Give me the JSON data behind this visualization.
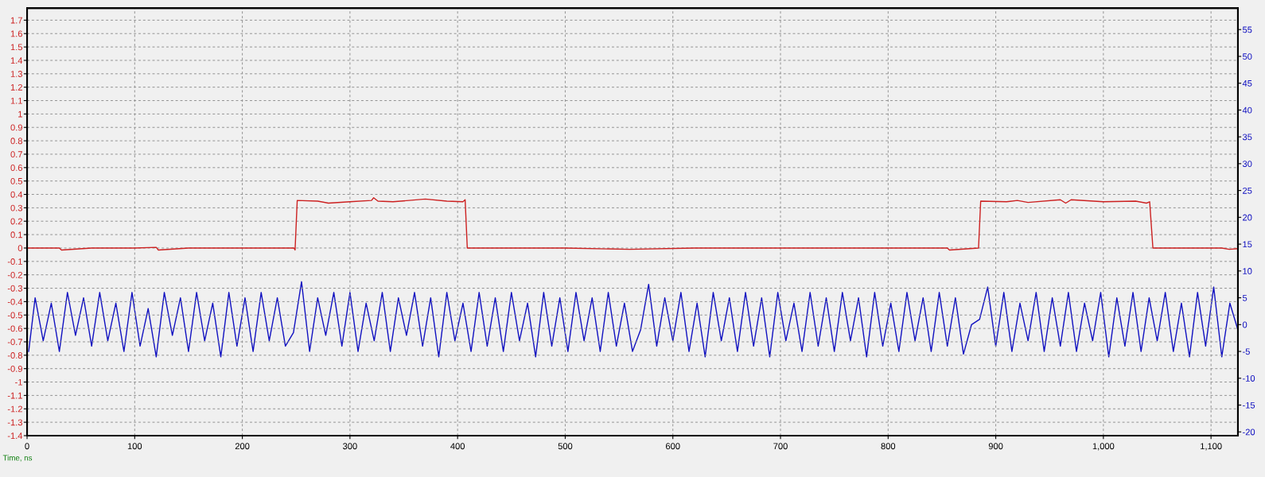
{
  "chart_data": {
    "type": "line",
    "xlabel": "Time, ns",
    "xlim": [
      0,
      1125
    ],
    "xticks": [
      0,
      100,
      200,
      300,
      400,
      500,
      600,
      700,
      800,
      900,
      {
        "value": 1000,
        "label": "1,000"
      },
      {
        "value": 1100,
        "label": "1,100"
      }
    ],
    "ylim": [
      -1.4,
      1.79
    ],
    "yticks": [
      -1.4,
      -1.3,
      -1.2,
      -1.1,
      -1,
      -0.9,
      -0.8,
      -0.7,
      -0.6,
      -0.5,
      -0.4,
      -0.3,
      -0.2,
      -0.1,
      0,
      0.1,
      0.2,
      0.3,
      0.4,
      0.5,
      0.6,
      0.7,
      0.8,
      0.9,
      1,
      1.1,
      1.2,
      1.3,
      1.4,
      1.5,
      1.6,
      1.7
    ],
    "y2lim": [
      -20.7,
      59
    ],
    "y2ticks": [
      -20,
      -15,
      -10,
      -5,
      0,
      5,
      10,
      15,
      20,
      25,
      30,
      35,
      40,
      45,
      50,
      55
    ],
    "grid": true,
    "line_style": "solid",
    "marker": "none",
    "series": [
      {
        "color": "#cc2020",
        "x": [
          0,
          30,
          32,
          60,
          100,
          120,
          122,
          150,
          200,
          230,
          248,
          249,
          251,
          270,
          280,
          300,
          320,
          322,
          326,
          340,
          370,
          390,
          405,
          407,
          409,
          450,
          500,
          560,
          620,
          700,
          750,
          800,
          855,
          857,
          884,
          886,
          910,
          920,
          930,
          960,
          965,
          970,
          1000,
          1030,
          1040,
          1043,
          1046,
          1080,
          1110,
          1117,
          1125
        ],
        "values": [
          0,
          0,
          -0.015,
          0,
          0,
          0.005,
          -0.015,
          0,
          0,
          0,
          0,
          -0.015,
          0.355,
          0.35,
          0.335,
          0.345,
          0.355,
          0.375,
          0.35,
          0.345,
          0.365,
          0.35,
          0.345,
          0.36,
          0,
          0,
          0,
          -0.01,
          0,
          0,
          0,
          0,
          0,
          -0.015,
          0,
          0.35,
          0.345,
          0.355,
          0.34,
          0.36,
          0.335,
          0.36,
          0.345,
          0.35,
          0.335,
          0.345,
          0,
          0,
          0,
          -0.01,
          -0.005
        ]
      },
      {
        "color": "#1010c0",
        "axis": "y2",
        "x": [
          1.5,
          7.5,
          15,
          22.5,
          30,
          37.5,
          45,
          52.5,
          60,
          67.5,
          75,
          82.5,
          90,
          97.5,
          105,
          112.5,
          120,
          127.5,
          135,
          142.5,
          150,
          157.5,
          165,
          172.5,
          180,
          187.5,
          195,
          202.5,
          210,
          217.5,
          225,
          232.5,
          240,
          247.5,
          255,
          262.5,
          270,
          277.5,
          285,
          292.5,
          300,
          307.5,
          315,
          322.5,
          330,
          337.5,
          345,
          352.5,
          360,
          367.5,
          375,
          382.5,
          390,
          397.5,
          405,
          412.5,
          420,
          427.5,
          435,
          442.5,
          450,
          457.5,
          465,
          472.5,
          480,
          487.5,
          495,
          502.5,
          510,
          517.5,
          525,
          532.5,
          540,
          547.5,
          555,
          562.5,
          570,
          577.5,
          585,
          592.5,
          600,
          607.5,
          615,
          622.5,
          630,
          637.5,
          645,
          652.5,
          660,
          667.5,
          675,
          682.5,
          690,
          697.5,
          705,
          712.5,
          720,
          727.5,
          735,
          742.5,
          750,
          757.5,
          765,
          772.5,
          780,
          787.5,
          795,
          802.5,
          810,
          817.5,
          825,
          832.5,
          840,
          847.5,
          855,
          862.5,
          870,
          877.5,
          885,
          892.5,
          900,
          907.5,
          915,
          922.5,
          930,
          937.5,
          945,
          952.5,
          960,
          967.5,
          975,
          982.5,
          990,
          997.5,
          1005,
          1012.5,
          1020,
          1027.5,
          1035,
          1042.5,
          1050,
          1057.5,
          1065,
          1072.5,
          1080,
          1087.5,
          1095,
          1102.5,
          1110,
          1117.5,
          1125
        ],
        "values": [
          -5,
          5,
          -3,
          4,
          -5,
          6,
          -2,
          5,
          -4,
          6,
          -3,
          4,
          -5,
          6,
          -4,
          3,
          -6,
          6,
          -2,
          5,
          -5,
          6,
          -3,
          4,
          -6,
          6,
          -4,
          5,
          -5,
          6,
          -3,
          5,
          -4,
          -1.5,
          8,
          -5,
          5,
          -2,
          6,
          -4,
          6,
          -5,
          4,
          -3,
          6,
          -5,
          5,
          -2,
          6,
          -4,
          5,
          -6,
          6,
          -3,
          4,
          -5,
          6,
          -4,
          5,
          -5,
          6,
          -3,
          4,
          -6,
          6,
          -4,
          5,
          -5,
          6,
          -3,
          5,
          -5,
          6,
          -4,
          4,
          -5,
          -1,
          7.5,
          -4,
          5,
          -3,
          6,
          -5,
          4,
          -6,
          6,
          -3,
          5,
          -5,
          6,
          -4,
          5,
          -6,
          6,
          -3,
          4,
          -5,
          6,
          -4,
          5,
          -5,
          6,
          -3,
          5,
          -6,
          6,
          -4,
          4,
          -5,
          6,
          -3,
          5,
          -5,
          6,
          -4,
          5,
          -5.5,
          0,
          1,
          7,
          -4,
          6,
          -5,
          4,
          -3,
          6,
          -5,
          5,
          -4,
          6,
          -5,
          4,
          -3,
          6,
          -6,
          5,
          -4,
          6,
          -5,
          5,
          -3,
          6,
          -5,
          4,
          -6,
          6,
          -4,
          7,
          -6,
          4,
          -1
        ]
      }
    ]
  }
}
